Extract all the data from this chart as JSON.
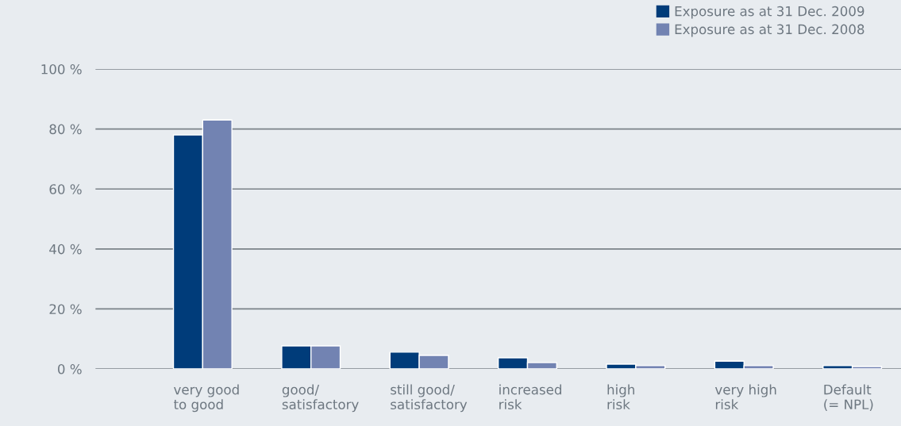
{
  "chart_data": {
    "type": "bar",
    "categories": [
      "very good\nto good",
      "good/\nsatisfactory",
      "still good/\nsatisfactory",
      "increased\nrisk",
      "high\nrisk",
      "very high\nrisk",
      "Default\n(= NPL)"
    ],
    "series": [
      {
        "name": "Exposure as at 31 Dec. 2009",
        "color": "#003c7a",
        "values": [
          78,
          7.7,
          5.6,
          3.7,
          1.6,
          2.6,
          1.1
        ]
      },
      {
        "name": "Exposure as at 31 Dec. 2008",
        "color": "#7283b2",
        "values": [
          83,
          7.7,
          4.5,
          2.1,
          1.1,
          1.1,
          0.8
        ]
      }
    ],
    "ylim": [
      0,
      100
    ],
    "yticks": [
      {
        "value": 0,
        "label": "0 %"
      },
      {
        "value": 20,
        "label": "20 %"
      },
      {
        "value": 40,
        "label": "40 %"
      },
      {
        "value": 60,
        "label": "60 %"
      },
      {
        "value": 80,
        "label": "80 %"
      },
      {
        "value": 100,
        "label": "100 %"
      }
    ],
    "grid": "y",
    "legend": "top right"
  }
}
